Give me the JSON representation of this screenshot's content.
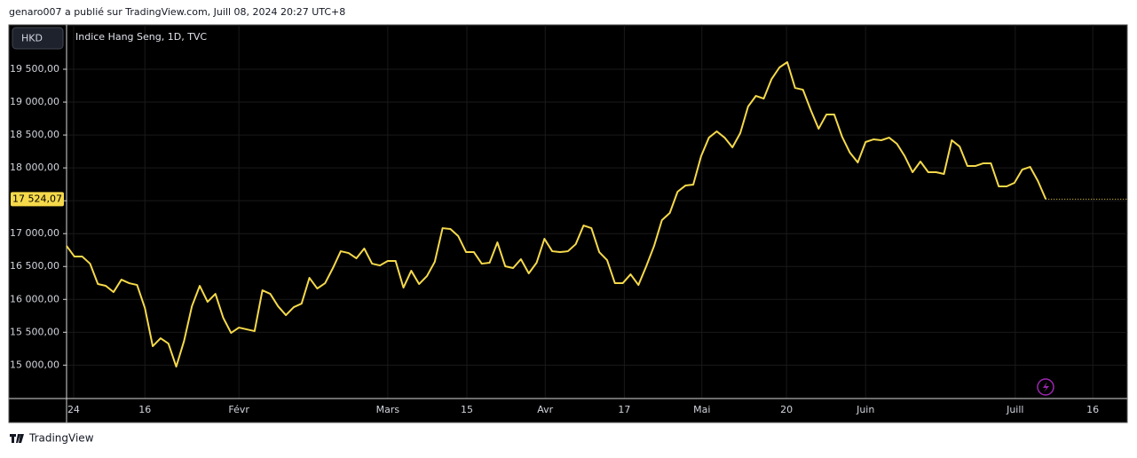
{
  "header": "genaro007 a publié sur TradingView.com, Juill 08, 2024 20:27 UTC+8",
  "brand": "TradingView",
  "chart_data": {
    "type": "line",
    "title": "Indice Hang Seng, 1D, TVC",
    "currency": "HKD",
    "color": "#f5d94a",
    "grid": true,
    "values": [
      16813,
      16651,
      16651,
      16543,
      16233,
      16206,
      16111,
      16300,
      16246,
      16219,
      15868,
      15288,
      15409,
      15328,
      14977,
      15369,
      15895,
      16206,
      15963,
      16084,
      15720,
      15490,
      15571,
      15544,
      15517,
      16138,
      16084,
      15895,
      15760,
      15882,
      15936,
      16327,
      16165,
      16246,
      16476,
      16732,
      16705,
      16624,
      16773,
      16543,
      16516,
      16584,
      16584,
      16179,
      16435,
      16233,
      16354,
      16570,
      17083,
      17070,
      16962,
      16719,
      16719,
      16543,
      16557,
      16867,
      16503,
      16476,
      16611,
      16395,
      16557,
      16921,
      16732,
      16719,
      16732,
      16840,
      17124,
      17083,
      16719,
      16597,
      16246,
      16246,
      16381,
      16219,
      16503,
      16813,
      17205,
      17313,
      17637,
      17731,
      17745,
      18177,
      18460,
      18555,
      18460,
      18312,
      18528,
      18933,
      19095,
      19054,
      19351,
      19527,
      19608,
      19216,
      19189,
      18879,
      18595,
      18811,
      18811,
      18474,
      18231,
      18082,
      18393,
      18433,
      18420,
      18460,
      18366,
      18177,
      17934,
      18096,
      17934,
      17934,
      17907,
      18420,
      18325,
      18028,
      18028,
      18069,
      18069,
      17718,
      17718,
      17772,
      17974,
      18015,
      17799,
      17524.07
    ],
    "price_tag": "17 524,07",
    "ylim": [
      14492,
      20148
    ],
    "yticks": [
      {
        "value": 15000,
        "label": "15 000,00"
      },
      {
        "value": 15500,
        "label": "15 500,00"
      },
      {
        "value": 16000,
        "label": "16 000,00"
      },
      {
        "value": 16500,
        "label": "16 500,00"
      },
      {
        "value": 17000,
        "label": "17 000,00"
      },
      {
        "value": 17500,
        "label": "17 500,00"
      },
      {
        "value": 18000,
        "label": "18 000,00"
      },
      {
        "value": 18500,
        "label": "18 500,00"
      },
      {
        "value": 19000,
        "label": "19 000,00"
      },
      {
        "value": 19500,
        "label": "19 500,00"
      }
    ],
    "xlim": [
      0,
      135.4
    ],
    "xticks": [
      {
        "value": 0.9,
        "label": "24"
      },
      {
        "value": 10,
        "label": "16"
      },
      {
        "value": 22,
        "label": "Févr"
      },
      {
        "value": 41,
        "label": "Mars"
      },
      {
        "value": 51.1,
        "label": "15"
      },
      {
        "value": 61.1,
        "label": "Avr"
      },
      {
        "value": 71.2,
        "label": "17"
      },
      {
        "value": 81.1,
        "label": "Mai"
      },
      {
        "value": 91.9,
        "label": "20"
      },
      {
        "value": 102,
        "label": "Juin"
      },
      {
        "value": 121.1,
        "label": "Juill"
      },
      {
        "value": 131,
        "label": "16"
      }
    ]
  }
}
